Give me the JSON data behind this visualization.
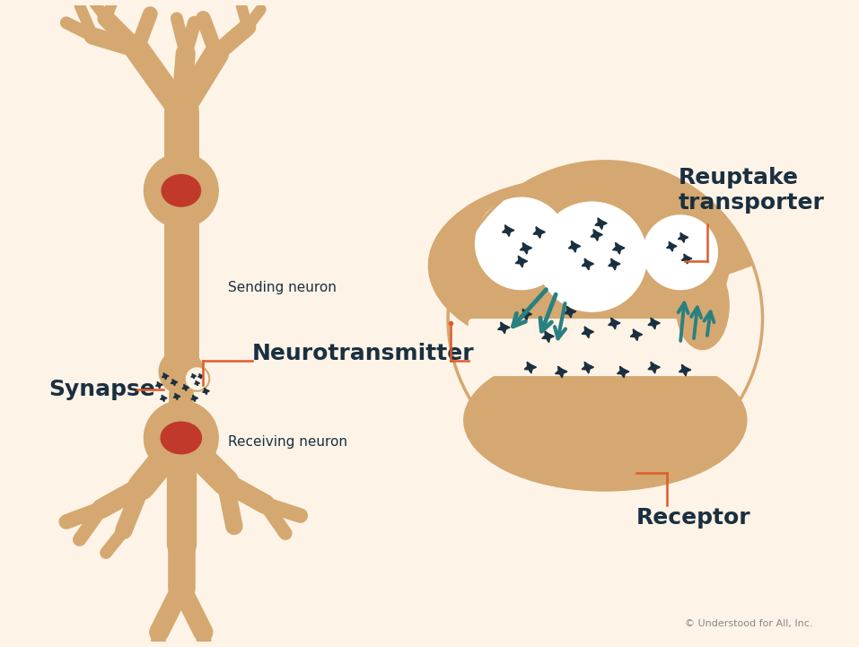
{
  "bg_color": "#fdf3e7",
  "neuron_color": "#d4a870",
  "nucleus_color": "#c0392b",
  "dark_color": "#1a3040",
  "teal_color": "#2a8080",
  "red_line_color": "#e05a2b",
  "circle_outline_color": "#d4a870",
  "label_fontsize": 11,
  "large_label_fontsize": 18,
  "copyright_text": "© Understood for All, Inc.",
  "synapse_label": "Synapse",
  "sending_label": "Sending neuron",
  "receiving_label": "Receiving neuron",
  "neurotransmitter_label": "Neurotransmitter",
  "reuptake_label": "Reuptake\ntransporter",
  "receptor_label": "Receptor"
}
